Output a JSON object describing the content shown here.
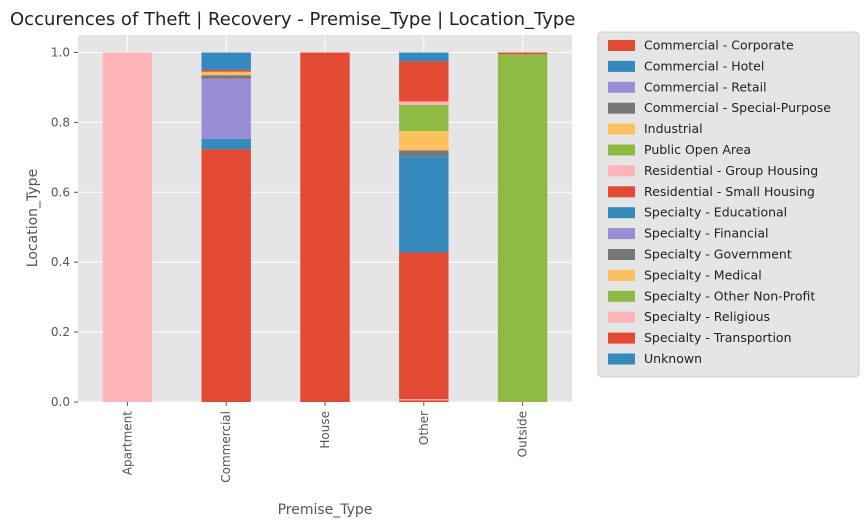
{
  "chart_data": {
    "type": "bar",
    "stacked": true,
    "title": "Occurences of Theft | Recovery - Premise_Type | Location_Type",
    "xlabel": "Premise_Type",
    "ylabel": "Location_Type",
    "ylim": [
      0,
      1.05
    ],
    "yticks": [
      "0.0",
      "0.2",
      "0.4",
      "0.6",
      "0.8",
      "1.0"
    ],
    "grid": true,
    "legend_position": "right-outside",
    "categories": [
      "Apartment",
      "Commercial",
      "House",
      "Other",
      "Outside"
    ],
    "series": [
      {
        "name": "Commercial - Corporate",
        "color": "#E24A33",
        "values": [
          0,
          0.723,
          0,
          0.005,
          0
        ]
      },
      {
        "name": "Commercial - Hotel",
        "color": "#348ABD",
        "values": [
          0,
          0.03,
          0,
          0,
          0
        ]
      },
      {
        "name": "Commercial - Retail",
        "color": "#988ED5",
        "values": [
          0,
          0.172,
          0,
          0,
          0
        ]
      },
      {
        "name": "Commercial - Special-Purpose",
        "color": "#777777",
        "values": [
          0,
          0.01,
          0,
          0,
          0
        ]
      },
      {
        "name": "Industrial",
        "color": "#FBC15E",
        "values": [
          0,
          0.01,
          0,
          0,
          0
        ]
      },
      {
        "name": "Public Open Area",
        "color": "#8EBA42",
        "values": [
          0,
          0,
          0,
          0,
          0.995
        ]
      },
      {
        "name": "Residential - Group Housing",
        "color": "#FFB5B8",
        "values": [
          1.0,
          0,
          0,
          0.003,
          0
        ]
      },
      {
        "name": "Residential - Small Housing",
        "color": "#E24A33",
        "values": [
          0,
          0,
          1.0,
          0.42,
          0
        ]
      },
      {
        "name": "Specialty - Educational",
        "color": "#348ABD",
        "values": [
          0,
          0,
          0,
          0.275,
          0
        ]
      },
      {
        "name": "Specialty - Financial",
        "color": "#988ED5",
        "values": [
          0,
          0,
          0,
          0,
          0
        ]
      },
      {
        "name": "Specialty - Government",
        "color": "#777777",
        "values": [
          0,
          0,
          0,
          0.017,
          0
        ]
      },
      {
        "name": "Specialty - Medical",
        "color": "#FBC15E",
        "values": [
          0,
          0,
          0,
          0.055,
          0
        ]
      },
      {
        "name": "Specialty - Other Non-Profit",
        "color": "#8EBA42",
        "values": [
          0,
          0,
          0,
          0.075,
          0
        ]
      },
      {
        "name": "Specialty - Religious",
        "color": "#FFB5B8",
        "values": [
          0,
          0,
          0,
          0.01,
          0
        ]
      },
      {
        "name": "Specialty - Transportion",
        "color": "#E24A33",
        "values": [
          0,
          0.005,
          0,
          0.115,
          0.005
        ]
      },
      {
        "name": "Unknown",
        "color": "#348ABD",
        "values": [
          0,
          0.05,
          0,
          0.025,
          0
        ]
      }
    ]
  }
}
